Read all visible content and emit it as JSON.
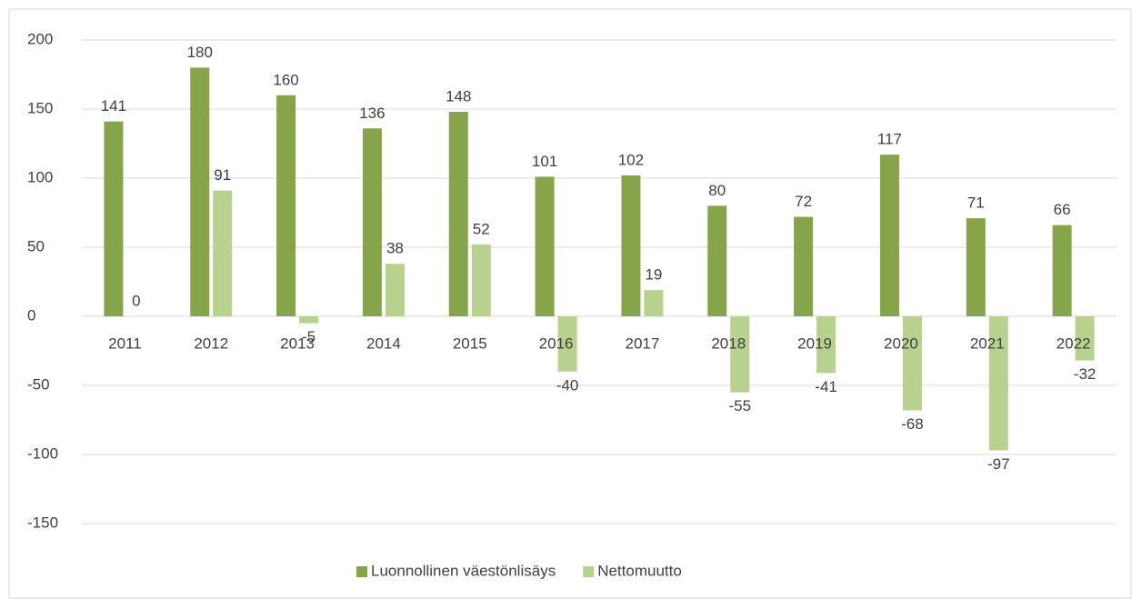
{
  "chart_data": {
    "type": "bar",
    "categories": [
      "2011",
      "2012",
      "2013",
      "2014",
      "2015",
      "2016",
      "2017",
      "2018",
      "2019",
      "2020",
      "2021",
      "2022"
    ],
    "series": [
      {
        "name": "Luonnollinen väestönlisäys",
        "color": "#86a44a",
        "values": [
          141,
          180,
          160,
          136,
          148,
          101,
          102,
          80,
          72,
          117,
          71,
          66
        ]
      },
      {
        "name": "Nettomuutto",
        "color": "#b9d18e",
        "values": [
          0,
          91,
          -5,
          38,
          52,
          -40,
          19,
          -55,
          -41,
          -68,
          -97,
          -32
        ]
      }
    ],
    "ylim": [
      -150,
      200
    ],
    "yticks": [
      -150,
      -100,
      -50,
      0,
      50,
      100,
      150,
      200
    ],
    "grid": true,
    "legend": "bottom"
  }
}
